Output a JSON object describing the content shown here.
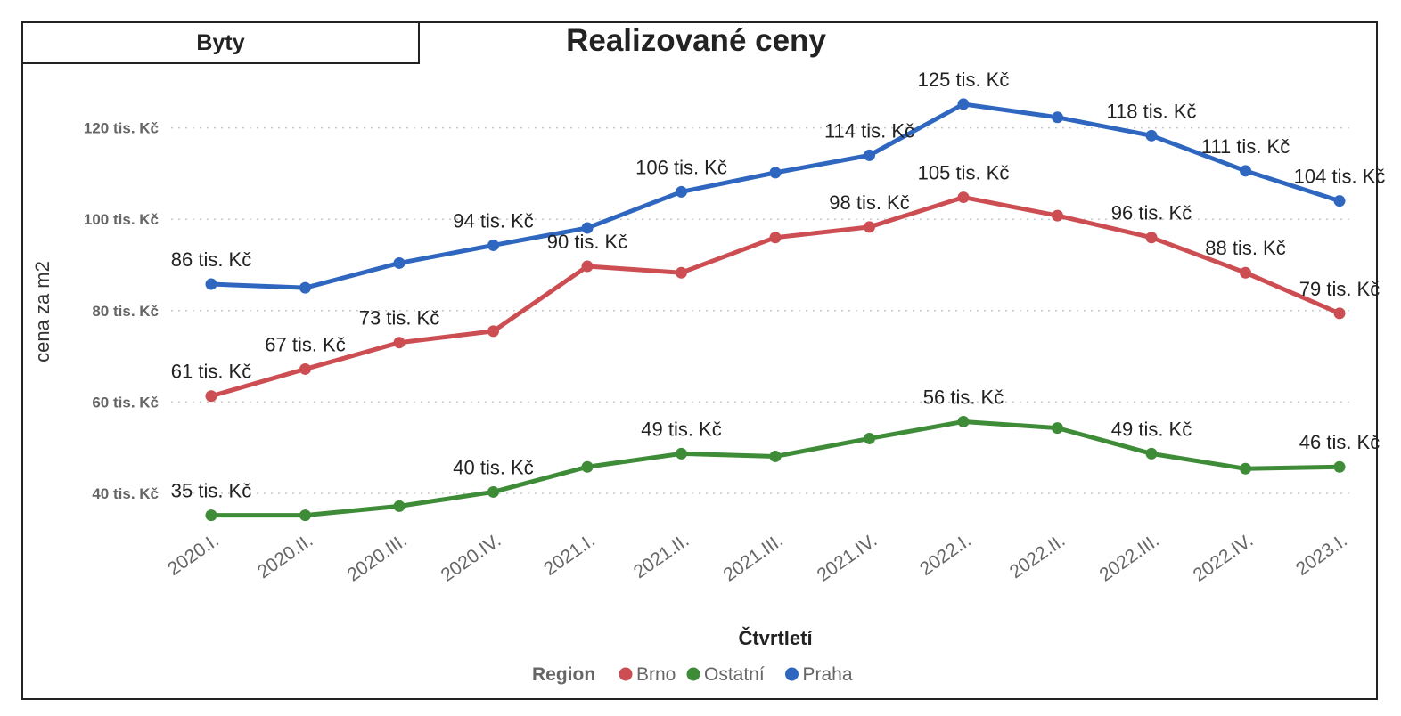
{
  "tab_label": "Byty",
  "chart_data": {
    "type": "line",
    "title": "Realizované ceny",
    "xlabel": "Čtvrtletí",
    "ylabel": "cena za m2",
    "categories": [
      "2020.I.",
      "2020.II.",
      "2020.III.",
      "2020.IV.",
      "2021.I.",
      "2021.II.",
      "2021.III.",
      "2021.IV.",
      "2022.I.",
      "2022.II.",
      "2022.III.",
      "2022.IV.",
      "2023.I."
    ],
    "yticks": [
      40,
      60,
      80,
      100,
      120
    ],
    "ytick_labels": [
      "40 tis. Kč",
      "60 tis. Kč",
      "80 tis. Kč",
      "100 tis. Kč",
      "120 tis. Kč"
    ],
    "ylim": [
      28,
      137
    ],
    "grid": "horizontal dotted",
    "legend": {
      "title": "Region",
      "placement": "bottom"
    },
    "series": [
      {
        "name": "Brno",
        "color": "#cc4e52",
        "values": [
          61.3,
          67.2,
          73.0,
          75.5,
          89.7,
          88.3,
          96.0,
          98.3,
          104.8,
          100.8,
          96.0,
          88.3,
          79.4
        ],
        "labels": [
          "61 tis. Kč",
          "67 tis. Kč",
          "73 tis. Kč",
          "",
          "90 tis. Kč",
          "",
          "",
          "98 tis. Kč",
          "105 tis. Kč",
          "",
          "96 tis. Kč",
          "88 tis. Kč",
          "79 tis. Kč"
        ]
      },
      {
        "name": "Ostatní",
        "color": "#3f8c38",
        "values": [
          35.2,
          35.2,
          37.2,
          40.3,
          45.8,
          48.7,
          48.1,
          52.0,
          55.7,
          54.3,
          48.7,
          45.4,
          45.8
        ],
        "labels": [
          "35 tis. Kč",
          "",
          "",
          "40 tis. Kč",
          "",
          "49 tis. Kč",
          "",
          "",
          "56 tis. Kč",
          "",
          "49 tis. Kč",
          "",
          "46 tis. Kč"
        ]
      },
      {
        "name": "Praha",
        "color": "#2f67c0",
        "values": [
          85.8,
          85.0,
          90.4,
          94.3,
          98.1,
          106.0,
          110.2,
          114.0,
          125.2,
          122.3,
          118.3,
          110.6,
          104.0
        ],
        "labels": [
          "86 tis. Kč",
          "",
          "",
          "94 tis. Kč",
          "",
          "106 tis. Kč",
          "",
          "114 tis. Kč",
          "125 tis. Kč",
          "",
          "118 tis. Kč",
          "111 tis. Kč",
          "104 tis. Kč"
        ]
      }
    ]
  }
}
